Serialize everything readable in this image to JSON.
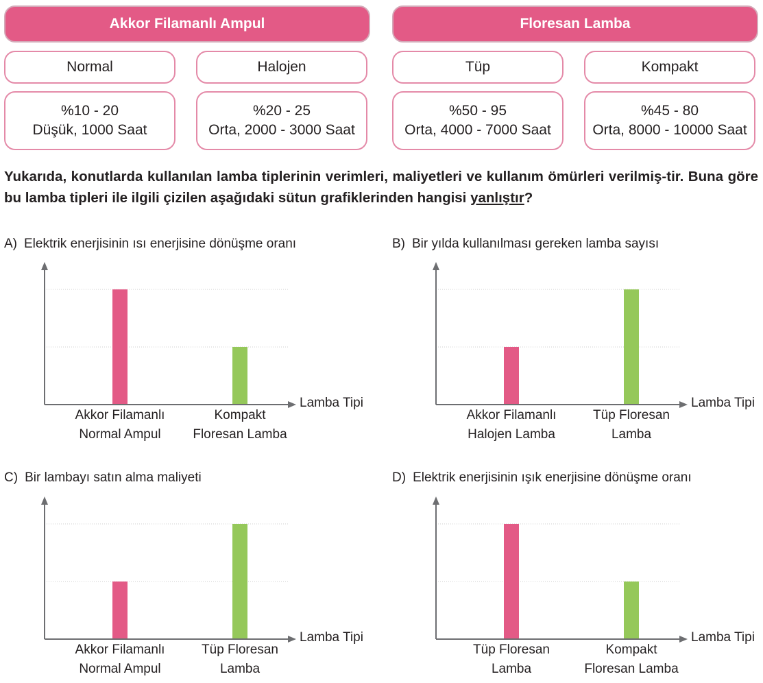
{
  "headers": {
    "incandescent": "Akkor Filamanlı Ampul",
    "fluorescent": "Floresan Lamba"
  },
  "lamps": [
    {
      "type": "Normal",
      "efficiency": "%10 - 20",
      "life": "Düşük, 1000 Saat"
    },
    {
      "type": "Halojen",
      "efficiency": "%20 - 25",
      "life": "Orta, 2000 - 3000 Saat"
    },
    {
      "type": "Tüp",
      "efficiency": "%50 - 95",
      "life": "Orta, 4000 - 7000 Saat"
    },
    {
      "type": "Kompakt",
      "efficiency": "%45 - 80",
      "life": "Orta, 8000 - 10000 Saat"
    }
  ],
  "question": {
    "text": "Yukarıda, konutlarda kullanılan lamba tiplerinin verimleri, maliyetleri ve kullanım ömürleri verilmiş-tir. Buna göre bu lamba tipleri ile ilgili çizilen aşağıdaki sütun grafiklerinden hangisi ",
    "emphasis": "yanlıştır",
    "end": "?"
  },
  "colors": {
    "pink": "#e35a86",
    "green": "#95c85a",
    "border": "#e48aa8"
  },
  "chart_data": [
    {
      "type": "bar",
      "option": "A)",
      "title": "Elektrik enerjisinin ısı enerjisine dönüşme oranı",
      "xlabel": "Lamba Tipi",
      "categories": [
        [
          "Akkor Filamanlı",
          "Normal Ampul"
        ],
        [
          "Kompakt",
          "Floresan Lamba"
        ]
      ],
      "values": [
        2,
        1
      ],
      "bar_colors": [
        "#e35a86",
        "#95c85a"
      ],
      "ylim": [
        0,
        2.4
      ],
      "gridlines": [
        1,
        2
      ]
    },
    {
      "type": "bar",
      "option": "B)",
      "title": "Bir yılda kullanılması gereken lamba sayısı",
      "xlabel": "Lamba Tipi",
      "categories": [
        [
          "Akkor Filamanlı",
          "Halojen Lamba"
        ],
        [
          "Tüp Floresan",
          "Lamba"
        ]
      ],
      "values": [
        1,
        2
      ],
      "bar_colors": [
        "#e35a86",
        "#95c85a"
      ],
      "ylim": [
        0,
        2.4
      ],
      "gridlines": [
        1,
        2
      ]
    },
    {
      "type": "bar",
      "option": "C)",
      "title": "Bir lambayı satın alma maliyeti",
      "xlabel": "Lamba Tipi",
      "categories": [
        [
          "Akkor Filamanlı",
          "Normal Ampul"
        ],
        [
          "Tüp Floresan",
          "Lamba"
        ]
      ],
      "values": [
        1,
        2
      ],
      "bar_colors": [
        "#e35a86",
        "#95c85a"
      ],
      "ylim": [
        0,
        2.4
      ],
      "gridlines": [
        1,
        2
      ]
    },
    {
      "type": "bar",
      "option": "D)",
      "title": "Elektrik enerjisinin ışık enerjisine dönüşme oranı",
      "xlabel": "Lamba Tipi",
      "categories": [
        [
          "Tüp Floresan",
          "Lamba"
        ],
        [
          "Kompakt",
          "Floresan Lamba"
        ]
      ],
      "values": [
        2,
        1
      ],
      "bar_colors": [
        "#e35a86",
        "#95c85a"
      ],
      "ylim": [
        0,
        2.4
      ],
      "gridlines": [
        1,
        2
      ]
    }
  ]
}
